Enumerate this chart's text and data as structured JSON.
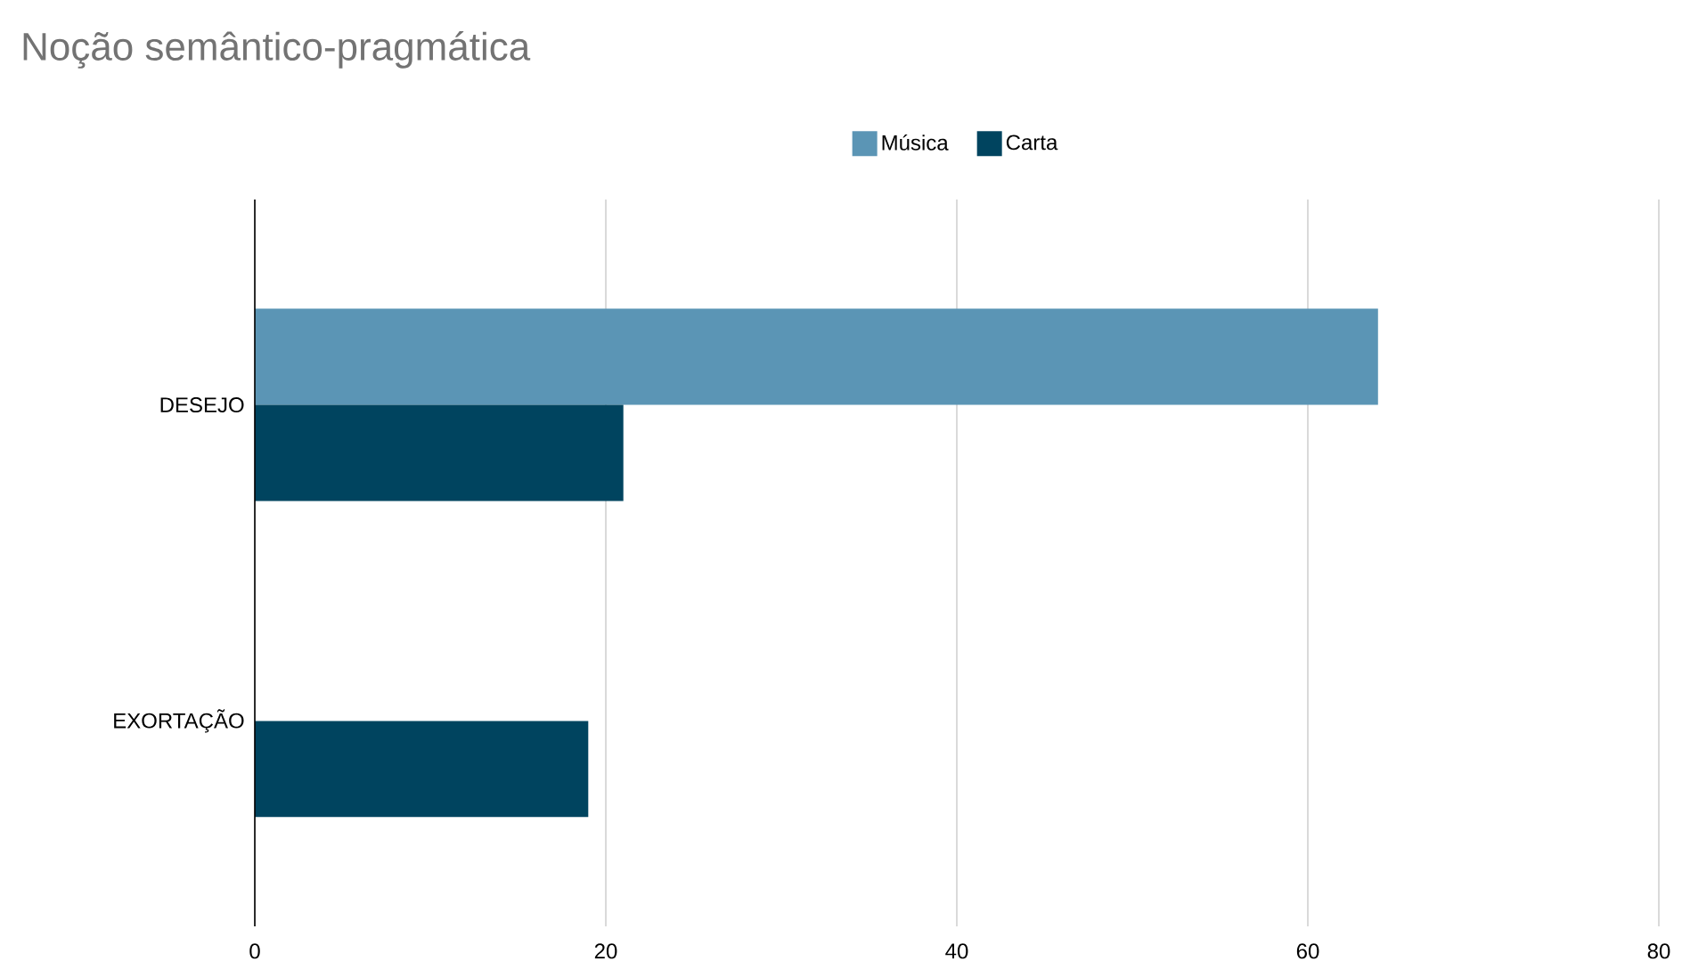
{
  "chart_data": {
    "type": "bar",
    "orientation": "horizontal",
    "title": "Noção semântico-pragmática",
    "categories": [
      "DESEJO",
      "EXORTAÇÃO"
    ],
    "series": [
      {
        "name": "Música",
        "color": "#5b95b5",
        "values": [
          64,
          0
        ]
      },
      {
        "name": "Carta",
        "color": "#00445f",
        "values": [
          21,
          19
        ]
      }
    ],
    "xlim": [
      0,
      80
    ],
    "xticks": [
      0,
      20,
      40,
      60,
      80
    ],
    "grid": "x",
    "legend": "top"
  }
}
